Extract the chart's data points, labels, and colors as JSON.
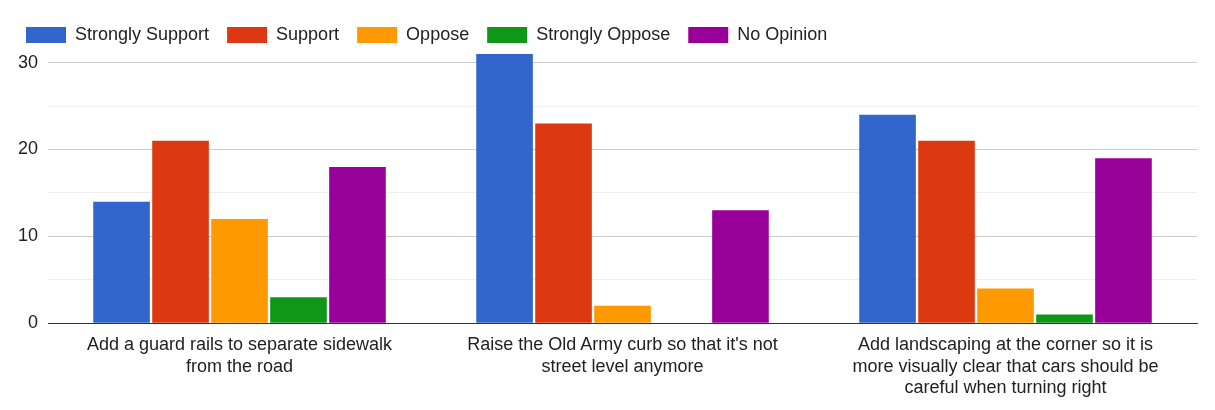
{
  "chart_data": {
    "type": "bar",
    "categories": [
      "Add a guard rails to separate sidewalk from the road",
      "Raise the Old Army curb so that it's not street level anymore",
      "Add landscaping at the corner so it is more visually clear that cars should be careful when turning right"
    ],
    "series": [
      {
        "name": "Strongly Support",
        "color": "#3366cc",
        "values": [
          14,
          31,
          24
        ]
      },
      {
        "name": "Support",
        "color": "#dc3912",
        "values": [
          21,
          23,
          21
        ]
      },
      {
        "name": "Oppose",
        "color": "#ff9900",
        "values": [
          12,
          2,
          4
        ]
      },
      {
        "name": "Strongly Oppose",
        "color": "#109618",
        "values": [
          3,
          0,
          1
        ]
      },
      {
        "name": "No Opinion",
        "color": "#990099",
        "values": [
          18,
          13,
          19
        ]
      }
    ],
    "ylim": [
      0,
      31
    ],
    "yticks": [
      0,
      {
        "value": 5,
        "label": null
      },
      10,
      {
        "value": 15,
        "label": null
      },
      20,
      {
        "value": 25,
        "label": null
      },
      30
    ],
    "grid": "y",
    "legend": "top left"
  }
}
